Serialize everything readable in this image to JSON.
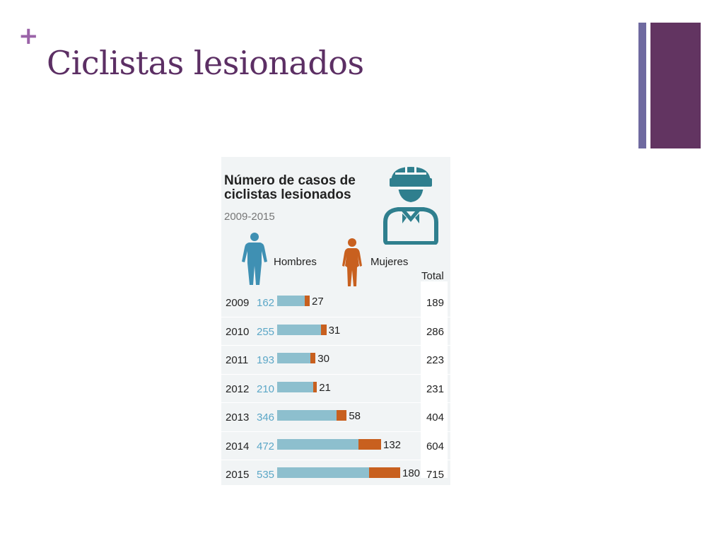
{
  "slide": {
    "title": "Ciclistas lesionados",
    "plus_sign": "+",
    "colors": {
      "title": "#5c2f64",
      "plus": "#9a63a8",
      "bar_thin": "#6f6aa0",
      "bar_wide": "#623461"
    }
  },
  "chart_data": {
    "type": "bar",
    "stacked": true,
    "orientation": "horizontal",
    "title": "Número de casos de ciclistas lesionados",
    "title_lines": [
      "Número de casos de",
      "ciclistas lesionados"
    ],
    "subtitle": "2009-2015",
    "legend": [
      "Hombres",
      "Mujeres"
    ],
    "total_label": "Total",
    "categories": [
      "2009",
      "2010",
      "2011",
      "2012",
      "2013",
      "2014",
      "2015"
    ],
    "series": [
      {
        "name": "Hombres",
        "color": "#8dbfce",
        "values": [
          162,
          255,
          193,
          210,
          346,
          472,
          535
        ]
      },
      {
        "name": "Mujeres",
        "color": "#c8601f",
        "values": [
          27,
          31,
          30,
          21,
          58,
          132,
          180
        ]
      }
    ],
    "totals": [
      189,
      286,
      223,
      231,
      404,
      604,
      715
    ],
    "xlim": [
      0,
      715
    ],
    "icons": [
      "cyclist-avatar-icon",
      "man-silhouette-icon",
      "woman-silhouette-icon"
    ]
  }
}
